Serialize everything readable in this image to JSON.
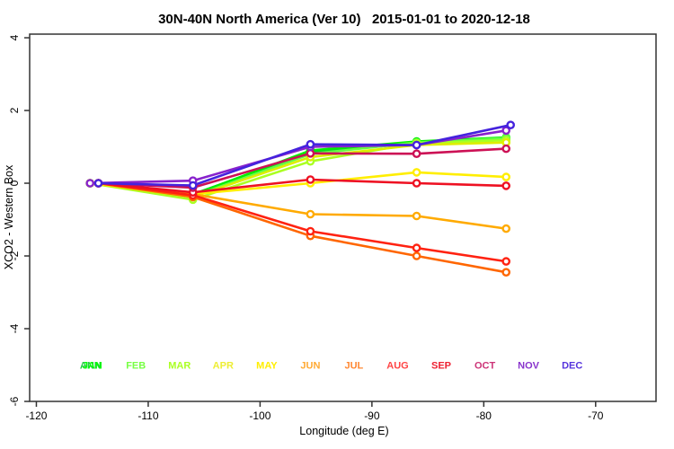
{
  "chart_data": {
    "type": "line",
    "title": "30N-40N North America (Ver 10)   2015-01-01 to 2020-12-18",
    "xlabel": "Longitude (deg E)",
    "ylabel": "XCO2 - Western Box",
    "xlim": [
      -120.6,
      -64.6
    ],
    "ylim": [
      -6.0,
      4.1
    ],
    "xticks": [
      -120,
      -110,
      -100,
      -90,
      -80,
      -70
    ],
    "yticks": [
      -6,
      -4,
      -2,
      0,
      2,
      4
    ],
    "grid": false,
    "legend_position": "inside-bottom",
    "frame_color": "#333333",
    "marker": "open-circle",
    "series": [
      {
        "name": "ANN",
        "color": "#11cc33",
        "x": [
          -115.2,
          -106,
          -95.5,
          -86,
          -78
        ],
        "y": [
          0.0,
          -0.3,
          0.85,
          1.1,
          1.22
        ]
      },
      {
        "name": "JAN",
        "color": "#00ee00",
        "x": [
          -115.2,
          -106,
          -95.5,
          -86,
          -78
        ],
        "y": [
          0.0,
          -0.32,
          0.9,
          1.15,
          1.26
        ]
      },
      {
        "name": "FEB",
        "color": "#66ff44",
        "x": [
          -115.2,
          -106,
          -95.5,
          -86,
          -78
        ],
        "y": [
          0.0,
          -0.36,
          0.8,
          1.12,
          1.24
        ]
      },
      {
        "name": "MAR",
        "color": "#aaff22",
        "x": [
          -115.2,
          -106,
          -95.5,
          -86,
          -78
        ],
        "y": [
          0.0,
          -0.45,
          0.6,
          1.1,
          1.18
        ]
      },
      {
        "name": "APR",
        "color": "#ddee00",
        "x": [
          -115.2,
          -106,
          -95.5,
          -86,
          -78
        ],
        "y": [
          0.0,
          -0.38,
          0.72,
          1.05,
          1.12
        ]
      },
      {
        "name": "MAY",
        "color": "#ffee00",
        "x": [
          -115.2,
          -106,
          -95.5,
          -86,
          -78
        ],
        "y": [
          0.0,
          -0.3,
          0.0,
          0.3,
          0.17
        ]
      },
      {
        "name": "JUN",
        "color": "#ffaa00",
        "x": [
          -114.45,
          -106,
          -95.5,
          -86,
          -78
        ],
        "y": [
          0.0,
          -0.3,
          -0.85,
          -0.9,
          -1.25
        ]
      },
      {
        "name": "JUL",
        "color": "#ff6600",
        "x": [
          -114.45,
          -106,
          -95.5,
          -86,
          -78
        ],
        "y": [
          0.0,
          -0.38,
          -1.45,
          -2.0,
          -2.45
        ]
      },
      {
        "name": "AUG",
        "color": "#ff2211",
        "x": [
          -114.45,
          -106,
          -95.5,
          -86,
          -78
        ],
        "y": [
          0.0,
          -0.33,
          -1.32,
          -1.78,
          -2.15
        ]
      },
      {
        "name": "SEP",
        "color": "#ee1122",
        "x": [
          -114.45,
          -106,
          -95.5,
          -86,
          -78
        ],
        "y": [
          0.0,
          -0.25,
          0.1,
          0.0,
          -0.07
        ]
      },
      {
        "name": "OCT",
        "color": "#cc1155",
        "x": [
          -114.45,
          -106,
          -95.5,
          -86,
          -78
        ],
        "y": [
          0.0,
          -0.12,
          0.82,
          0.81,
          0.95
        ]
      },
      {
        "name": "NOV",
        "color": "#8822cc",
        "x": [
          -115.2,
          -106,
          -95.5,
          -86,
          -78
        ],
        "y": [
          0.0,
          0.07,
          1.0,
          1.05,
          1.45
        ]
      },
      {
        "name": "DEC",
        "color": "#4422dd",
        "x": [
          -114.45,
          -106,
          -95.5,
          -86,
          -77.6
        ],
        "y": [
          0.0,
          -0.06,
          1.07,
          1.05,
          1.6
        ]
      }
    ],
    "month_labels": [
      {
        "label": "ANN",
        "color": "#22cc44",
        "lon": -115.15,
        "value": -5.1
      },
      {
        "label": "JAN",
        "color": "#00ff00",
        "lon": -115.0,
        "value": -5.1
      },
      {
        "label": "FEB",
        "color": "#77ff44",
        "lon": -111.1,
        "value": -5.1
      },
      {
        "label": "MAR",
        "color": "#aaff22",
        "lon": -107.2,
        "value": -5.1
      },
      {
        "label": "APR",
        "color": "#eeee33",
        "lon": -103.3,
        "value": -5.1
      },
      {
        "label": "MAY",
        "color": "#ffee00",
        "lon": -99.4,
        "value": -5.1
      },
      {
        "label": "JUN",
        "color": "#ffaa33",
        "lon": -95.5,
        "value": -5.1
      },
      {
        "label": "JUL",
        "color": "#ff8833",
        "lon": -91.6,
        "value": -5.1
      },
      {
        "label": "AUG",
        "color": "#ff4444",
        "lon": -87.7,
        "value": -5.1
      },
      {
        "label": "SEP",
        "color": "#ee2233",
        "lon": -83.8,
        "value": -5.1
      },
      {
        "label": "OCT",
        "color": "#cc3377",
        "lon": -79.9,
        "value": -5.1
      },
      {
        "label": "NOV",
        "color": "#8833cc",
        "lon": -76.0,
        "value": -5.1
      },
      {
        "label": "DEC",
        "color": "#5533dd",
        "lon": -72.1,
        "value": -5.1
      }
    ]
  }
}
